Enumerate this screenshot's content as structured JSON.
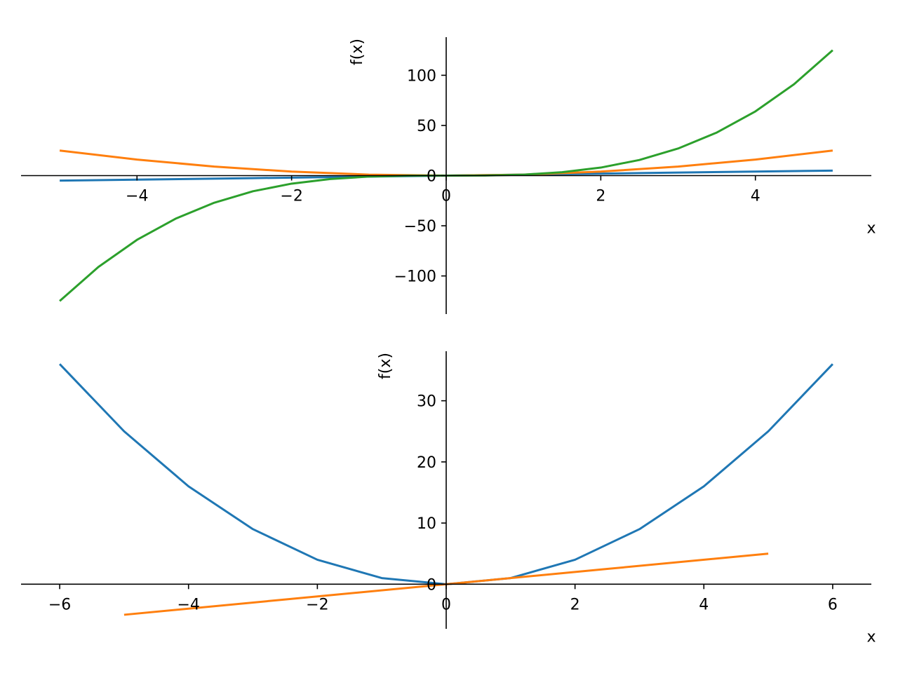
{
  "figure": {
    "background": "#ffffff",
    "axis_color": "#000000"
  },
  "chart_data": [
    {
      "type": "line",
      "xlabel": "x",
      "ylabel": "f(x)",
      "xlim": [
        -5.5,
        5.5
      ],
      "ylim": [
        -138,
        138
      ],
      "grid": false,
      "spines": "centered",
      "x_ticks": [
        {
          "value": -4,
          "label": "−4"
        },
        {
          "value": -2,
          "label": "−2"
        },
        {
          "value": 0,
          "label": "0"
        },
        {
          "value": 2,
          "label": "2"
        },
        {
          "value": 4,
          "label": "4"
        }
      ],
      "y_ticks": [
        {
          "value": -100,
          "label": "−100"
        },
        {
          "value": -50,
          "label": "−50"
        },
        {
          "value": 0,
          "label": "0"
        },
        {
          "value": 50,
          "label": "50"
        },
        {
          "value": 100,
          "label": "100"
        }
      ],
      "series": [
        {
          "color": "#1f77b4",
          "domain": [
            -5,
            5
          ],
          "points": [
            [
              -5,
              -5
            ],
            [
              -2.5,
              -2.5
            ],
            [
              0,
              0
            ],
            [
              2.5,
              2.5
            ],
            [
              5,
              5
            ]
          ]
        },
        {
          "color": "#ff7f0e",
          "domain": [
            -5,
            5
          ],
          "points": [
            [
              -5,
              25
            ],
            [
              -4,
              16
            ],
            [
              -3,
              9
            ],
            [
              -2,
              4
            ],
            [
              -1,
              1
            ],
            [
              0,
              0
            ],
            [
              1,
              1
            ],
            [
              2,
              4
            ],
            [
              3,
              9
            ],
            [
              4,
              16
            ],
            [
              5,
              25
            ]
          ]
        },
        {
          "color": "#2ca02c",
          "domain": [
            -5,
            5
          ],
          "points": [
            [
              -5,
              -125
            ],
            [
              -4.5,
              -91.1
            ],
            [
              -4,
              -64
            ],
            [
              -3.5,
              -42.9
            ],
            [
              -3,
              -27
            ],
            [
              -2.5,
              -15.6
            ],
            [
              -2,
              -8
            ],
            [
              -1.5,
              -3.4
            ],
            [
              -1,
              -1
            ],
            [
              -0.5,
              -0.1
            ],
            [
              0,
              0
            ],
            [
              0.5,
              0.1
            ],
            [
              1,
              1
            ],
            [
              1.5,
              3.4
            ],
            [
              2,
              8
            ],
            [
              2.5,
              15.6
            ],
            [
              3,
              27
            ],
            [
              3.5,
              42.9
            ],
            [
              4,
              64
            ],
            [
              4.5,
              91.1
            ],
            [
              5,
              125
            ]
          ]
        }
      ]
    },
    {
      "type": "line",
      "xlabel": "x",
      "ylabel": "f(x)",
      "xlim": [
        -6.6,
        6.6
      ],
      "ylim": [
        -7.3,
        38.1
      ],
      "grid": false,
      "spines": "centered",
      "x_ticks": [
        {
          "value": -6,
          "label": "−6"
        },
        {
          "value": -4,
          "label": "−4"
        },
        {
          "value": -2,
          "label": "−2"
        },
        {
          "value": 0,
          "label": "0"
        },
        {
          "value": 2,
          "label": "2"
        },
        {
          "value": 4,
          "label": "4"
        },
        {
          "value": 6,
          "label": "6"
        }
      ],
      "y_ticks": [
        {
          "value": 0,
          "label": "0"
        },
        {
          "value": 10,
          "label": "10"
        },
        {
          "value": 20,
          "label": "20"
        },
        {
          "value": 30,
          "label": "30"
        }
      ],
      "series": [
        {
          "color": "#1f77b4",
          "domain": [
            -6,
            6
          ],
          "points": [
            [
              -6,
              36
            ],
            [
              -5,
              25
            ],
            [
              -4,
              16
            ],
            [
              -3,
              9
            ],
            [
              -2,
              4
            ],
            [
              -1,
              1
            ],
            [
              0,
              0
            ],
            [
              1,
              1
            ],
            [
              2,
              4
            ],
            [
              3,
              9
            ],
            [
              4,
              16
            ],
            [
              5,
              25
            ],
            [
              6,
              36
            ]
          ]
        },
        {
          "color": "#ff7f0e",
          "domain": [
            -5,
            5
          ],
          "points": [
            [
              -5,
              -5
            ],
            [
              -2.5,
              -2.5
            ],
            [
              0,
              0
            ],
            [
              2.5,
              2.5
            ],
            [
              5,
              5
            ]
          ]
        }
      ]
    }
  ]
}
